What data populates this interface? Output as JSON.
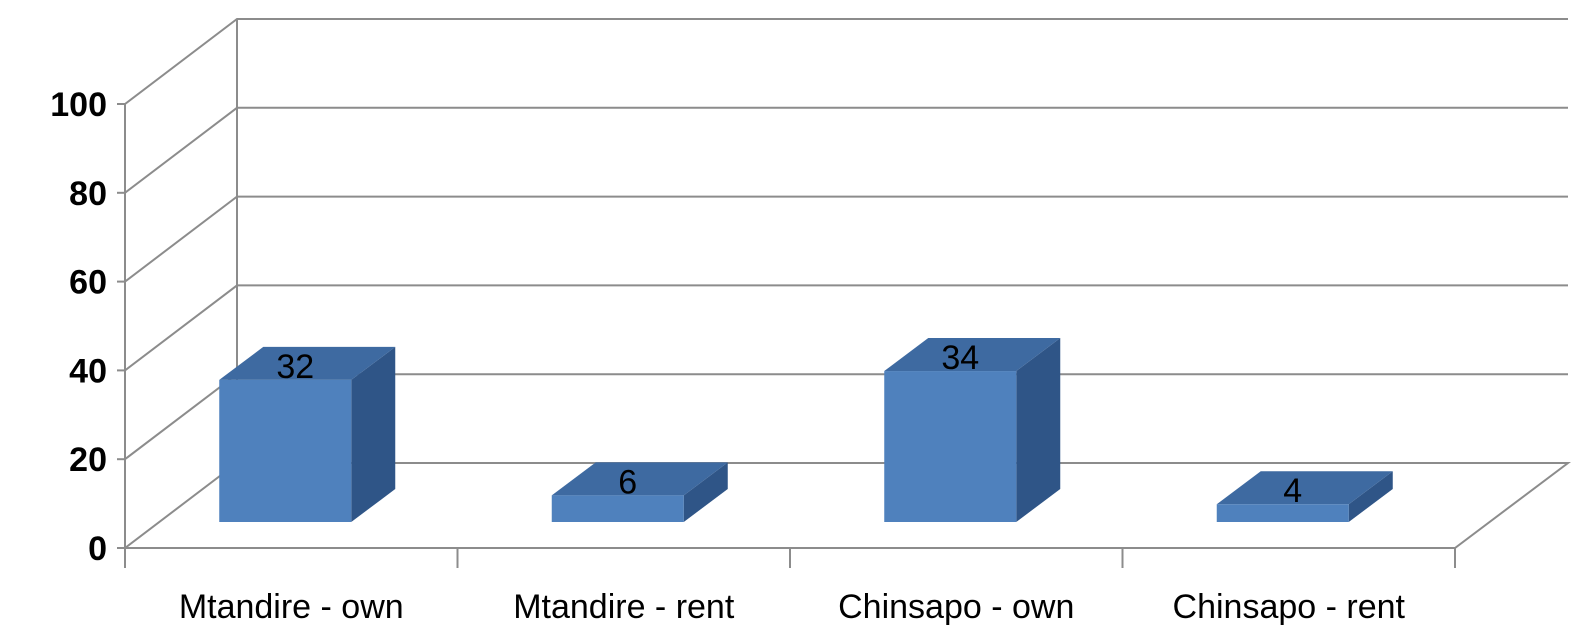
{
  "chart_data": {
    "type": "bar",
    "style": "3d-column",
    "categories": [
      "Mtandire - own",
      "Mtandire - rent",
      "Chinsapo - own",
      "Chinsapo - rent"
    ],
    "values": [
      32,
      6,
      34,
      4
    ],
    "data_labels": [
      "32",
      "6",
      "34",
      "4"
    ],
    "title": "",
    "xlabel": "",
    "ylabel": "",
    "ylim": [
      0,
      100
    ],
    "y_ticks": [
      0,
      20,
      40,
      60,
      80,
      100
    ],
    "y_tick_labels": [
      "0",
      "20",
      "40",
      "60",
      "80",
      "100"
    ],
    "grid": true,
    "legend": "none",
    "colors": {
      "bar_front": "#4f81bd",
      "bar_top": "#3e6aa1",
      "bar_side": "#2f5587",
      "grid": "#8c8c8c"
    }
  }
}
